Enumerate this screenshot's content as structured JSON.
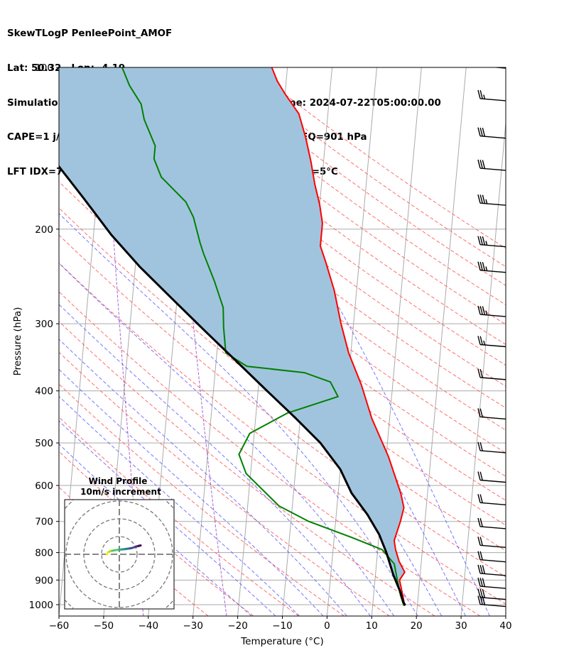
{
  "header": {
    "line1": "SkewTLogP PenleePoint_AMOF",
    "line2": "Lat: 50.32   Lon: -4.19",
    "line3": "Simulation start time: 2024-07-21_00:00:00, Valid time: 2024-07-22T05:00:00.00",
    "line4": "CAPE=1 j/kg, CIN=-6 j/kg, LCL=994 hPa, LFC=956 hPa, EQ=901 hPa",
    "line5": "LFT IDX=7°C, K IDX=6°C, TOTAL TOTS=41°C, SHWTR_IDX=5°C"
  },
  "chart_data": {
    "type": "line",
    "xlabel": "Temperature (°C)",
    "ylabel": "Pressure (hPa)",
    "xlim": [
      -60,
      40
    ],
    "ylim": [
      1050,
      100
    ],
    "x_ticks": [
      -60,
      -50,
      -40,
      -30,
      -20,
      -10,
      0,
      10,
      20,
      30,
      40
    ],
    "y_ticks": [
      100,
      200,
      300,
      400,
      500,
      600,
      700,
      800,
      900,
      1000
    ],
    "y_scale": "log",
    "skew": true,
    "grid": true,
    "colors": {
      "temperature": "#ff0000",
      "dewpoint": "#008000",
      "parcel": "#000000",
      "cape_fill": "#a1c4de",
      "dry_adiabats": "#ff5555",
      "moist_adiabats": "#5555ff",
      "mixing_ratio": "#9a3fc0",
      "isotherms": "#aaaaaa"
    },
    "series": [
      {
        "id": "temperature",
        "points": [
          [
            17.2,
            1005
          ],
          [
            16.5,
            960
          ],
          [
            15.5,
            900
          ],
          [
            16.5,
            870
          ],
          [
            15,
            830
          ],
          [
            14,
            790
          ],
          [
            13.5,
            760
          ],
          [
            14.5,
            700
          ],
          [
            15,
            660
          ],
          [
            14,
            620
          ],
          [
            10.5,
            530
          ],
          [
            6,
            450
          ],
          [
            3,
            390
          ],
          [
            -0.5,
            340
          ],
          [
            -2.8,
            300
          ],
          [
            -5,
            260
          ],
          [
            -7.5,
            230
          ],
          [
            -9,
            215
          ],
          [
            -9,
            200
          ],
          [
            -9,
            195
          ],
          [
            -10,
            180
          ],
          [
            -11.5,
            165
          ],
          [
            -12.8,
            150
          ],
          [
            -14.5,
            135
          ],
          [
            -16.5,
            122
          ],
          [
            -20,
            112
          ],
          [
            -22,
            106
          ],
          [
            -23.5,
            100
          ]
        ]
      },
      {
        "id": "dewpoint",
        "points": [
          [
            17,
            1005
          ],
          [
            16,
            960
          ],
          [
            15,
            900
          ],
          [
            14,
            840
          ],
          [
            11,
            790
          ],
          [
            4,
            750
          ],
          [
            -6,
            700
          ],
          [
            -13,
            655
          ],
          [
            -21,
            570
          ],
          [
            -23,
            525
          ],
          [
            -21,
            480
          ],
          [
            -13,
            440
          ],
          [
            -2,
            410
          ],
          [
            -4,
            385
          ],
          [
            -10,
            370
          ],
          [
            -23,
            360
          ],
          [
            -28,
            340
          ],
          [
            -29,
            305
          ],
          [
            -29.5,
            280
          ],
          [
            -32,
            250
          ],
          [
            -35,
            222
          ],
          [
            -36,
            212
          ],
          [
            -38,
            190
          ],
          [
            -40,
            178
          ],
          [
            -46,
            160
          ],
          [
            -48,
            148
          ],
          [
            -48,
            140
          ],
          [
            -51,
            125
          ],
          [
            -52,
            117
          ],
          [
            -55,
            108
          ],
          [
            -57,
            100
          ]
        ]
      },
      {
        "id": "parcel",
        "points": [
          [
            17.3,
            1003
          ],
          [
            16.8,
            990
          ],
          [
            16,
            950
          ],
          [
            14,
            880
          ],
          [
            12,
            800
          ],
          [
            10,
            740
          ],
          [
            7,
            680
          ],
          [
            3,
            620
          ],
          [
            0,
            560
          ],
          [
            -5,
            500
          ],
          [
            -11,
            450
          ],
          [
            -18,
            400
          ],
          [
            -25,
            355
          ],
          [
            -33,
            310
          ],
          [
            -41,
            270
          ],
          [
            -49,
            235
          ],
          [
            -56,
            205
          ],
          [
            -63,
            175
          ],
          [
            -70,
            150
          ],
          [
            -77,
            127
          ],
          [
            -83,
            108
          ],
          [
            -86,
            100
          ]
        ]
      }
    ],
    "wind_barbs": [
      {
        "p": 1005,
        "barbs": 3
      },
      {
        "p": 975,
        "barbs": 3
      },
      {
        "p": 930,
        "barbs": 3
      },
      {
        "p": 880,
        "barbs": 3
      },
      {
        "p": 830,
        "barbs": 2
      },
      {
        "p": 780,
        "barbs": 2
      },
      {
        "p": 720,
        "barbs": 2
      },
      {
        "p": 650,
        "barbs": 2
      },
      {
        "p": 590,
        "barbs": 2
      },
      {
        "p": 520,
        "barbs": 2
      },
      {
        "p": 450,
        "barbs": 2
      },
      {
        "p": 380,
        "barbs": 2
      },
      {
        "p": 330,
        "barbs": 2.5
      },
      {
        "p": 290,
        "barbs": 3.5
      },
      {
        "p": 240,
        "barbs": 3.5
      },
      {
        "p": 215,
        "barbs": 3.5
      },
      {
        "p": 180,
        "barbs": 3.5
      },
      {
        "p": 155,
        "barbs": 3
      },
      {
        "p": 135,
        "barbs": 3
      },
      {
        "p": 115,
        "barbs": 2.5
      },
      {
        "p": 100,
        "barbs": 2
      }
    ],
    "hodograph": {
      "title": "Wind Profile",
      "subtitle": "10m/s increment",
      "ring_count": 4,
      "points": [
        [
          12,
          -5
        ],
        [
          10,
          -4.5
        ],
        [
          8.5,
          -4
        ],
        [
          7,
          -3.5
        ],
        [
          5,
          -3.2
        ],
        [
          3,
          -2.9
        ],
        [
          1,
          -2.7
        ],
        [
          -1,
          -2.5
        ],
        [
          -3,
          -2.2
        ],
        [
          -5,
          -1.8
        ],
        [
          -6.5,
          -1
        ],
        [
          -7,
          0
        ]
      ]
    }
  }
}
